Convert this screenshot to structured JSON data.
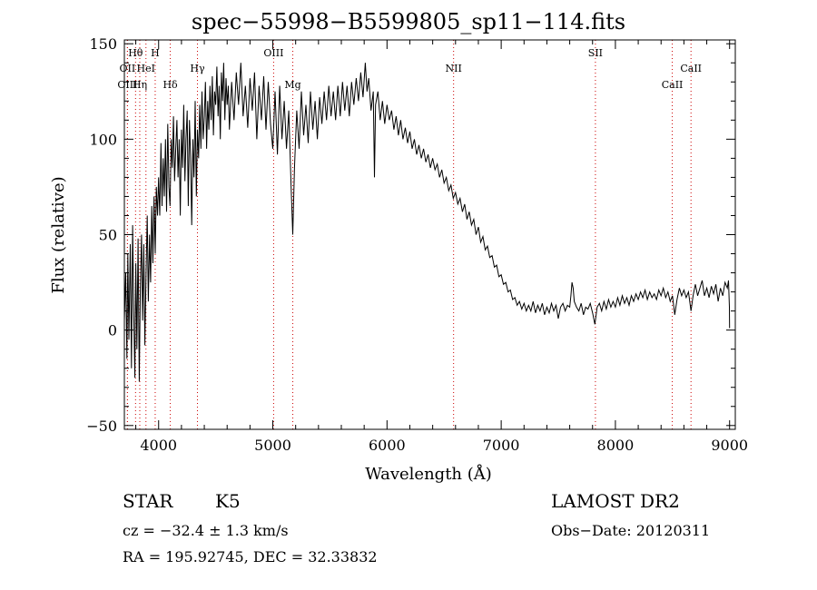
{
  "chart_data": {
    "type": "line",
    "title": "spec−55998−B5599805_sp11−114.fits",
    "xlabel": "Wavelength (Å)",
    "ylabel": "Flux (relative)",
    "xlim": [
      3700,
      9050
    ],
    "ylim": [
      -52,
      152
    ],
    "xticks": [
      4000,
      5000,
      6000,
      7000,
      8000,
      9000
    ],
    "xtick_labels": [
      "4000",
      "5000",
      "6000",
      "7000",
      "8000",
      "9000"
    ],
    "yticks": [
      -50,
      0,
      50,
      100,
      150
    ],
    "ytick_labels": [
      "−50",
      "0",
      "50",
      "100",
      "150"
    ],
    "line_color": "#000000",
    "marker_color": "#cc0000",
    "lines": [
      {
        "label": "Hθ",
        "x": 3798,
        "row": 1
      },
      {
        "label": "H",
        "x": 3970,
        "row": 1
      },
      {
        "label": "OII",
        "x": 3727,
        "row": 2
      },
      {
        "label": "HeI",
        "x": 3889,
        "row": 2
      },
      {
        "label": "OIII",
        "x": 3727,
        "row": 3
      },
      {
        "label": "Hη",
        "x": 3835,
        "row": 3
      },
      {
        "label": "Hδ",
        "x": 4102,
        "row": 3
      },
      {
        "label": "Hγ",
        "x": 4340,
        "row": 2
      },
      {
        "label": "OIII",
        "x": 5007,
        "row": 1
      },
      {
        "label": "Mg",
        "x": 5175,
        "row": 3
      },
      {
        "label": "NII",
        "x": 6583,
        "row": 2
      },
      {
        "label": "SII",
        "x": 7825,
        "row": 1
      },
      {
        "label": "CaII",
        "x": 8662,
        "row": 2
      },
      {
        "label": "CaII",
        "x": 8498,
        "row": 3
      }
    ],
    "spectrum": [
      [
        3700,
        5
      ],
      [
        3712,
        30
      ],
      [
        3722,
        -15
      ],
      [
        3730,
        40
      ],
      [
        3740,
        -5
      ],
      [
        3752,
        45
      ],
      [
        3762,
        -20
      ],
      [
        3772,
        55
      ],
      [
        3782,
        10
      ],
      [
        3792,
        -25
      ],
      [
        3800,
        35
      ],
      [
        3810,
        -10
      ],
      [
        3820,
        48
      ],
      [
        3830,
        -27
      ],
      [
        3840,
        22
      ],
      [
        3850,
        50
      ],
      [
        3860,
        5
      ],
      [
        3870,
        45
      ],
      [
        3880,
        -8
      ],
      [
        3890,
        30
      ],
      [
        3900,
        60
      ],
      [
        3910,
        15
      ],
      [
        3920,
        50
      ],
      [
        3930,
        25
      ],
      [
        3940,
        65
      ],
      [
        3950,
        35
      ],
      [
        3960,
        70
      ],
      [
        3970,
        40
      ],
      [
        3980,
        75
      ],
      [
        3990,
        60
      ],
      [
        4000,
        80
      ],
      [
        4010,
        60
      ],
      [
        4020,
        98
      ],
      [
        4030,
        65
      ],
      [
        4040,
        90
      ],
      [
        4050,
        70
      ],
      [
        4060,
        100
      ],
      [
        4070,
        62
      ],
      [
        4080,
        108
      ],
      [
        4090,
        75
      ],
      [
        4100,
        65
      ],
      [
        4110,
        100
      ],
      [
        4120,
        85
      ],
      [
        4130,
        112
      ],
      [
        4140,
        78
      ],
      [
        4150,
        95
      ],
      [
        4160,
        110
      ],
      [
        4170,
        80
      ],
      [
        4180,
        100
      ],
      [
        4190,
        60
      ],
      [
        4200,
        105
      ],
      [
        4210,
        85
      ],
      [
        4220,
        118
      ],
      [
        4230,
        78
      ],
      [
        4240,
        100
      ],
      [
        4250,
        115
      ],
      [
        4260,
        65
      ],
      [
        4270,
        110
      ],
      [
        4280,
        90
      ],
      [
        4290,
        55
      ],
      [
        4300,
        100
      ],
      [
        4310,
        80
      ],
      [
        4320,
        120
      ],
      [
        4330,
        70
      ],
      [
        4340,
        105
      ],
      [
        4350,
        90
      ],
      [
        4360,
        118
      ],
      [
        4370,
        95
      ],
      [
        4380,
        125
      ],
      [
        4390,
        100
      ],
      [
        4400,
        112
      ],
      [
        4410,
        130
      ],
      [
        4420,
        95
      ],
      [
        4430,
        120
      ],
      [
        4440,
        105
      ],
      [
        4450,
        128
      ],
      [
        4460,
        110
      ],
      [
        4470,
        133
      ],
      [
        4480,
        102
      ],
      [
        4490,
        125
      ],
      [
        4500,
        118
      ],
      [
        4510,
        138
      ],
      [
        4520,
        112
      ],
      [
        4530,
        128
      ],
      [
        4540,
        100
      ],
      [
        4550,
        135
      ],
      [
        4560,
        120
      ],
      [
        4570,
        140
      ],
      [
        4580,
        110
      ],
      [
        4590,
        132
      ],
      [
        4600,
        118
      ],
      [
        4610,
        128
      ],
      [
        4620,
        105
      ],
      [
        4640,
        130
      ],
      [
        4660,
        110
      ],
      [
        4680,
        135
      ],
      [
        4700,
        118
      ],
      [
        4720,
        140
      ],
      [
        4740,
        112
      ],
      [
        4760,
        128
      ],
      [
        4780,
        106
      ],
      [
        4800,
        132
      ],
      [
        4820,
        115
      ],
      [
        4840,
        135
      ],
      [
        4860,
        100
      ],
      [
        4880,
        128
      ],
      [
        4900,
        110
      ],
      [
        4920,
        133
      ],
      [
        4940,
        105
      ],
      [
        4960,
        130
      ],
      [
        4980,
        108
      ],
      [
        5000,
        95
      ],
      [
        5020,
        125
      ],
      [
        5040,
        92
      ],
      [
        5060,
        128
      ],
      [
        5080,
        100
      ],
      [
        5100,
        120
      ],
      [
        5120,
        95
      ],
      [
        5140,
        115
      ],
      [
        5160,
        75
      ],
      [
        5175,
        50
      ],
      [
        5190,
        85
      ],
      [
        5210,
        115
      ],
      [
        5230,
        95
      ],
      [
        5250,
        125
      ],
      [
        5270,
        102
      ],
      [
        5290,
        118
      ],
      [
        5310,
        98
      ],
      [
        5330,
        125
      ],
      [
        5350,
        105
      ],
      [
        5370,
        120
      ],
      [
        5390,
        100
      ],
      [
        5410,
        122
      ],
      [
        5430,
        108
      ],
      [
        5450,
        125
      ],
      [
        5470,
        110
      ],
      [
        5490,
        128
      ],
      [
        5510,
        112
      ],
      [
        5530,
        125
      ],
      [
        5550,
        110
      ],
      [
        5570,
        128
      ],
      [
        5590,
        112
      ],
      [
        5610,
        130
      ],
      [
        5630,
        115
      ],
      [
        5650,
        128
      ],
      [
        5670,
        112
      ],
      [
        5690,
        130
      ],
      [
        5710,
        118
      ],
      [
        5730,
        132
      ],
      [
        5750,
        120
      ],
      [
        5770,
        135
      ],
      [
        5790,
        122
      ],
      [
        5810,
        140
      ],
      [
        5825,
        125
      ],
      [
        5840,
        132
      ],
      [
        5860,
        115
      ],
      [
        5880,
        125
      ],
      [
        5890,
        80
      ],
      [
        5900,
        118
      ],
      [
        5920,
        125
      ],
      [
        5940,
        110
      ],
      [
        5960,
        120
      ],
      [
        5980,
        108
      ],
      [
        6000,
        118
      ],
      [
        6020,
        110
      ],
      [
        6040,
        115
      ],
      [
        6060,
        105
      ],
      [
        6080,
        112
      ],
      [
        6100,
        102
      ],
      [
        6120,
        110
      ],
      [
        6140,
        100
      ],
      [
        6160,
        106
      ],
      [
        6180,
        98
      ],
      [
        6200,
        104
      ],
      [
        6220,
        95
      ],
      [
        6240,
        100
      ],
      [
        6260,
        92
      ],
      [
        6280,
        97
      ],
      [
        6300,
        90
      ],
      [
        6320,
        95
      ],
      [
        6340,
        88
      ],
      [
        6360,
        92
      ],
      [
        6380,
        85
      ],
      [
        6400,
        90
      ],
      [
        6420,
        84
      ],
      [
        6440,
        87
      ],
      [
        6460,
        80
      ],
      [
        6480,
        84
      ],
      [
        6500,
        77
      ],
      [
        6520,
        80
      ],
      [
        6540,
        73
      ],
      [
        6560,
        76
      ],
      [
        6580,
        69
      ],
      [
        6600,
        72
      ],
      [
        6620,
        66
      ],
      [
        6640,
        69
      ],
      [
        6660,
        62
      ],
      [
        6680,
        66
      ],
      [
        6700,
        58
      ],
      [
        6720,
        62
      ],
      [
        6740,
        55
      ],
      [
        6760,
        58
      ],
      [
        6780,
        50
      ],
      [
        6800,
        54
      ],
      [
        6820,
        46
      ],
      [
        6840,
        49
      ],
      [
        6860,
        42
      ],
      [
        6880,
        44
      ],
      [
        6900,
        38
      ],
      [
        6920,
        39
      ],
      [
        6940,
        33
      ],
      [
        6960,
        34
      ],
      [
        6980,
        28
      ],
      [
        7000,
        29
      ],
      [
        7020,
        24
      ],
      [
        7040,
        25
      ],
      [
        7060,
        20
      ],
      [
        7080,
        21
      ],
      [
        7100,
        16
      ],
      [
        7120,
        17
      ],
      [
        7140,
        13
      ],
      [
        7160,
        15
      ],
      [
        7180,
        11
      ],
      [
        7200,
        14
      ],
      [
        7220,
        10
      ],
      [
        7240,
        13
      ],
      [
        7260,
        10
      ],
      [
        7280,
        15
      ],
      [
        7300,
        9
      ],
      [
        7320,
        13
      ],
      [
        7340,
        10
      ],
      [
        7360,
        14
      ],
      [
        7380,
        8
      ],
      [
        7400,
        12
      ],
      [
        7420,
        9
      ],
      [
        7440,
        14
      ],
      [
        7460,
        10
      ],
      [
        7480,
        13
      ],
      [
        7500,
        6
      ],
      [
        7520,
        12
      ],
      [
        7540,
        14
      ],
      [
        7560,
        10
      ],
      [
        7580,
        13
      ],
      [
        7600,
        12
      ],
      [
        7610,
        18
      ],
      [
        7620,
        25
      ],
      [
        7630,
        22
      ],
      [
        7640,
        15
      ],
      [
        7660,
        12
      ],
      [
        7680,
        10
      ],
      [
        7700,
        14
      ],
      [
        7720,
        8
      ],
      [
        7740,
        12
      ],
      [
        7760,
        11
      ],
      [
        7780,
        14
      ],
      [
        7800,
        9
      ],
      [
        7820,
        3
      ],
      [
        7840,
        12
      ],
      [
        7860,
        14
      ],
      [
        7880,
        10
      ],
      [
        7900,
        15
      ],
      [
        7920,
        11
      ],
      [
        7940,
        16
      ],
      [
        7960,
        12
      ],
      [
        7980,
        15
      ],
      [
        8000,
        12
      ],
      [
        8020,
        17
      ],
      [
        8040,
        13
      ],
      [
        8060,
        18
      ],
      [
        8080,
        14
      ],
      [
        8100,
        17
      ],
      [
        8120,
        13
      ],
      [
        8140,
        18
      ],
      [
        8160,
        15
      ],
      [
        8180,
        19
      ],
      [
        8200,
        16
      ],
      [
        8220,
        20
      ],
      [
        8240,
        17
      ],
      [
        8260,
        21
      ],
      [
        8280,
        16
      ],
      [
        8300,
        20
      ],
      [
        8320,
        17
      ],
      [
        8340,
        19
      ],
      [
        8360,
        16
      ],
      [
        8380,
        21
      ],
      [
        8400,
        18
      ],
      [
        8420,
        22
      ],
      [
        8440,
        17
      ],
      [
        8460,
        20
      ],
      [
        8480,
        15
      ],
      [
        8500,
        18
      ],
      [
        8520,
        8
      ],
      [
        8540,
        16
      ],
      [
        8560,
        22
      ],
      [
        8580,
        18
      ],
      [
        8600,
        21
      ],
      [
        8620,
        17
      ],
      [
        8640,
        20
      ],
      [
        8662,
        10
      ],
      [
        8680,
        18
      ],
      [
        8700,
        24
      ],
      [
        8720,
        18
      ],
      [
        8740,
        22
      ],
      [
        8760,
        26
      ],
      [
        8780,
        18
      ],
      [
        8800,
        22
      ],
      [
        8820,
        17
      ],
      [
        8840,
        23
      ],
      [
        8860,
        19
      ],
      [
        8880,
        24
      ],
      [
        8900,
        15
      ],
      [
        8920,
        22
      ],
      [
        8940,
        18
      ],
      [
        8960,
        25
      ],
      [
        8980,
        22
      ],
      [
        8990,
        26
      ],
      [
        8998,
        12
      ],
      [
        9000,
        1
      ]
    ]
  },
  "footer": {
    "object_class": "STAR",
    "subclass": "K5",
    "survey": "LAMOST DR2",
    "redshift_text": "cz = −32.4 ± 1.3 km/s",
    "obs_date": "Obs−Date: 20120311",
    "coords": "RA = 195.92745, DEC =  32.33832"
  }
}
